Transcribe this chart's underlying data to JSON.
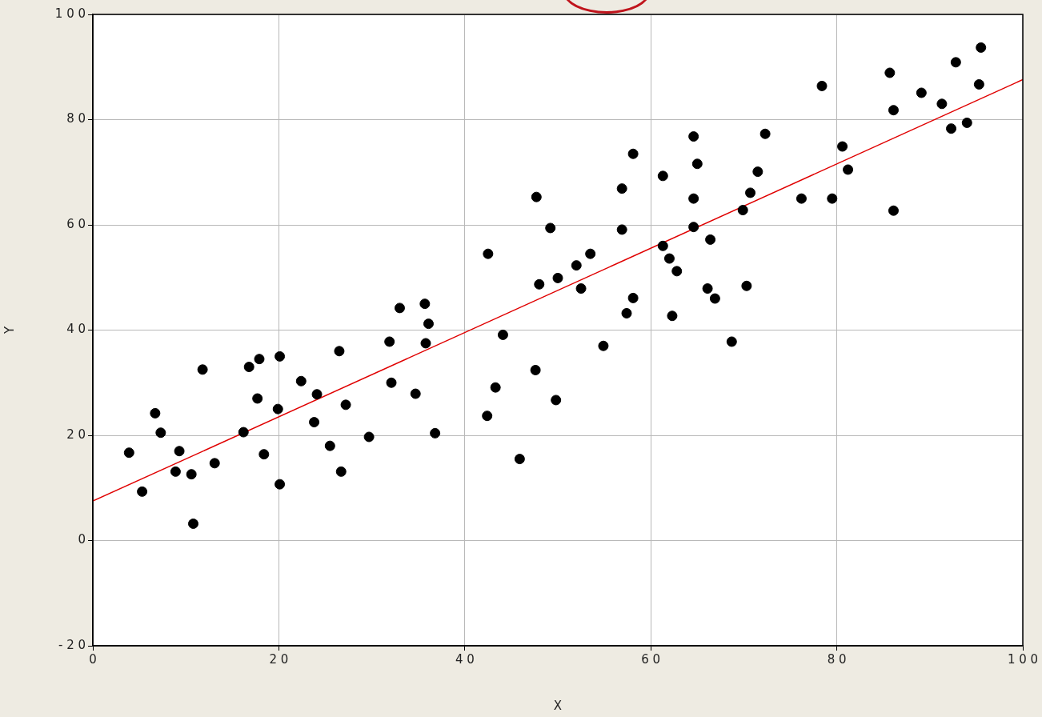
{
  "chart_data": {
    "type": "scatter",
    "xlabel": "X",
    "ylabel": "Y",
    "xlim": [
      0,
      100
    ],
    "ylim": [
      -20,
      100
    ],
    "xticks": [
      0,
      20,
      40,
      60,
      80,
      100
    ],
    "yticks": [
      -20,
      0,
      20,
      40,
      60,
      80,
      100
    ],
    "grid": true,
    "legend": false,
    "series": [
      {
        "marker": "circle",
        "color": "#000000",
        "x": [
          3.9,
          5.3,
          6.7,
          7.3,
          8.9,
          9.3,
          10.6,
          10.8,
          11.8,
          13.1,
          16.2,
          16.8,
          17.7,
          17.9,
          18.4,
          19.9,
          20.1,
          20.1,
          22.4,
          23.8,
          24.1,
          25.5,
          26.5,
          26.7,
          27.2,
          29.7,
          31.9,
          32.1,
          33,
          34.7,
          35.7,
          35.8,
          36.1,
          36.8,
          42.4,
          42.5,
          43.3,
          44.1,
          45.9,
          47.6,
          47.7,
          48,
          49.2,
          49.8,
          50,
          52,
          52.5,
          53.5,
          54.9,
          56.9,
          56.9,
          57.4,
          58.1,
          58.1,
          61.3,
          61.3,
          62,
          62.3,
          62.8,
          64.6,
          64.6,
          64.6,
          65,
          66.1,
          66.4,
          66.9,
          68.7,
          69.9,
          70.3,
          70.7,
          71.5,
          72.3,
          76.2,
          78.4,
          79.5,
          80.6,
          81.2,
          85.7,
          86.1,
          86.1,
          89.1,
          91.3,
          92.3,
          92.8,
          94,
          95.3,
          95.5
        ],
        "values": [
          16.7,
          9.3,
          24.2,
          20.5,
          13.1,
          17,
          12.6,
          3.2,
          32.5,
          14.7,
          20.6,
          33,
          27,
          34.5,
          16.4,
          25,
          35,
          10.7,
          30.3,
          22.5,
          27.8,
          18,
          36,
          13.1,
          25.8,
          19.7,
          37.8,
          30,
          44.2,
          27.9,
          45,
          37.5,
          41.2,
          20.4,
          23.7,
          54.5,
          29.1,
          39.1,
          15.5,
          32.4,
          65.3,
          48.7,
          59.4,
          26.7,
          49.9,
          52.3,
          47.9,
          54.5,
          37,
          66.9,
          59.1,
          43.2,
          46.1,
          73.5,
          69.3,
          56,
          53.6,
          42.7,
          51.2,
          76.8,
          65,
          59.6,
          71.6,
          47.9,
          57.2,
          46,
          37.8,
          62.8,
          48.4,
          66.1,
          70.1,
          77.3,
          65,
          86.4,
          65,
          74.9,
          70.5,
          88.9,
          81.8,
          62.7,
          85.1,
          83,
          78.3,
          90.9,
          79.4,
          86.7,
          93.7
        ]
      },
      {
        "type": "line",
        "marker": "none",
        "color": "#e00000",
        "x": [
          0,
          100
        ],
        "values": [
          7.5,
          87.6
        ]
      }
    ]
  }
}
